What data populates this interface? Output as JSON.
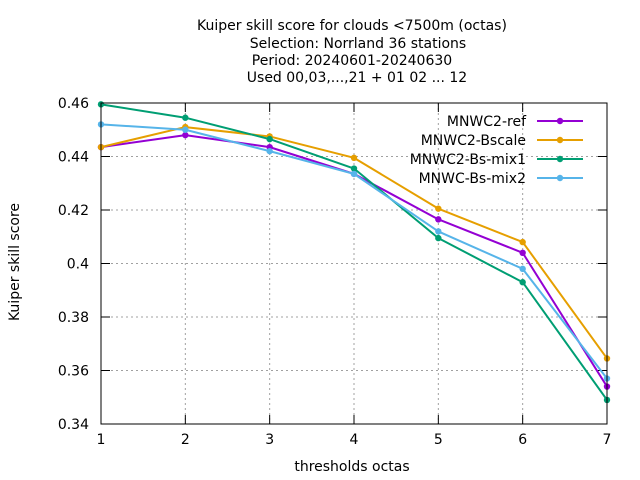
{
  "chart_data": {
    "type": "line",
    "title_lines": [
      "Kuiper skill score  for clouds <7500m (octas)",
      "Selection: Norrland     36 stations",
      "Period: 20240601-20240630",
      "Used 00,03,...,21 + 01 02 ... 12"
    ],
    "xlabel": "thresholds octas",
    "ylabel": "Kuiper skill score",
    "x": [
      1,
      2,
      3,
      4,
      5,
      6,
      7
    ],
    "xlim": [
      1,
      7
    ],
    "ylim": [
      0.34,
      0.46
    ],
    "x_ticks": [
      "1",
      "2",
      "3",
      "4",
      "5",
      "6",
      "7"
    ],
    "y_ticks": [
      {
        "value": 0.34,
        "label": "0.34"
      },
      {
        "value": 0.36,
        "label": "0.36"
      },
      {
        "value": 0.38,
        "label": "0.38"
      },
      {
        "value": 0.4,
        "label": "0.4"
      },
      {
        "value": 0.42,
        "label": "0.42"
      },
      {
        "value": 0.44,
        "label": "0.44"
      },
      {
        "value": 0.46,
        "label": "0.46"
      }
    ],
    "grid": true,
    "legend_position": "top-right",
    "series": [
      {
        "name": "MNWC2-ref",
        "color": "#9400d3",
        "values": [
          0.4435,
          0.448,
          0.4435,
          0.4335,
          0.4165,
          0.404,
          0.354
        ]
      },
      {
        "name": "MNWC2-Bscale",
        "color": "#e69f00",
        "values": [
          0.4435,
          0.451,
          0.4475,
          0.4395,
          0.4205,
          0.408,
          0.3645
        ]
      },
      {
        "name": "MNWC2-Bs-mix1",
        "color": "#009e73",
        "values": [
          0.4595,
          0.4545,
          0.4465,
          0.4355,
          0.4095,
          0.393,
          0.349
        ]
      },
      {
        "name": "MNWC-Bs-mix2",
        "color": "#56b4e9",
        "values": [
          0.452,
          0.45,
          0.442,
          0.4335,
          0.412,
          0.398,
          0.357
        ]
      }
    ]
  }
}
